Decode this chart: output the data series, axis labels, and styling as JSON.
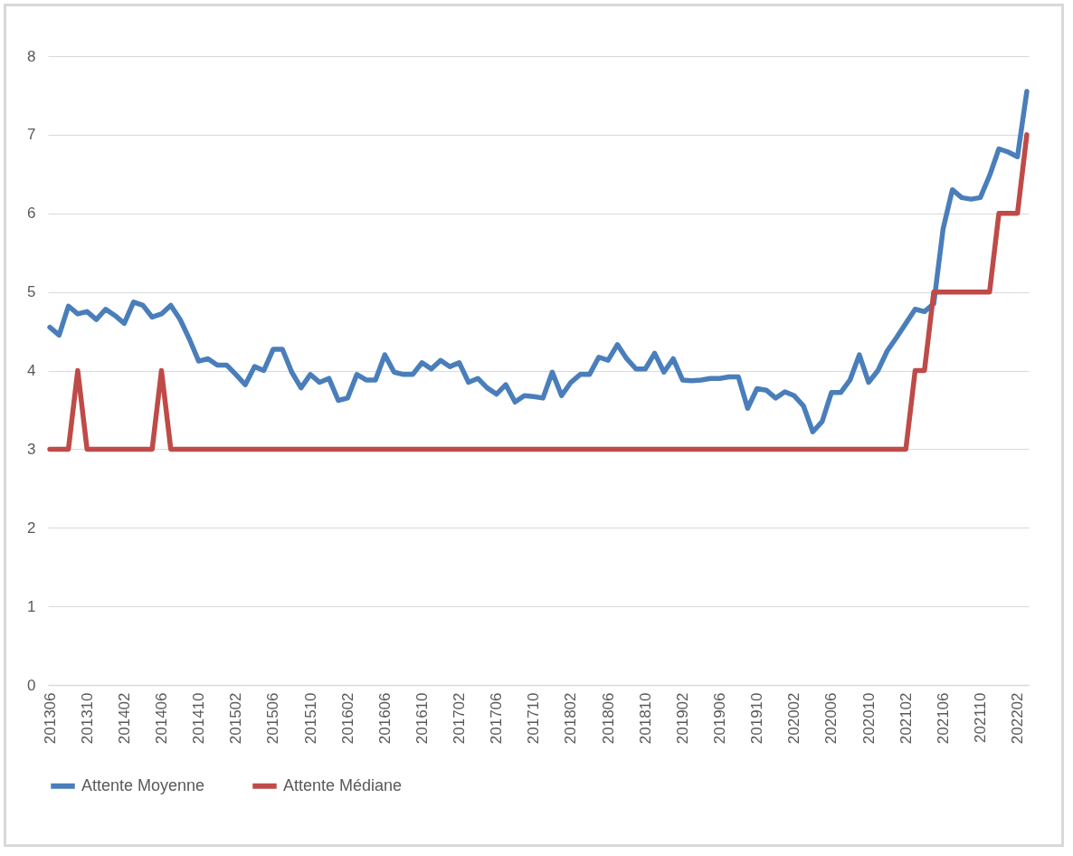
{
  "chart_data": {
    "type": "line",
    "categories": [
      "201306",
      null,
      null,
      null,
      "201310",
      null,
      null,
      null,
      "201402",
      null,
      null,
      null,
      "201406",
      null,
      null,
      null,
      "201410",
      null,
      null,
      null,
      "201502",
      null,
      null,
      null,
      "201506",
      null,
      null,
      null,
      "201510",
      null,
      null,
      null,
      "201602",
      null,
      null,
      null,
      "201606",
      null,
      null,
      null,
      "201610",
      null,
      null,
      null,
      "201702",
      null,
      null,
      null,
      "201706",
      null,
      null,
      null,
      "201710",
      null,
      null,
      null,
      "201802",
      null,
      null,
      null,
      "201806",
      null,
      null,
      null,
      "201810",
      null,
      null,
      null,
      "201902",
      null,
      null,
      null,
      "201906",
      null,
      null,
      null,
      "201910",
      null,
      null,
      null,
      "202002",
      null,
      null,
      null,
      "202006",
      null,
      null,
      null,
      "202010",
      null,
      null,
      null,
      "202102",
      null,
      null,
      null,
      "202106",
      null,
      null,
      null,
      "202110",
      null,
      null,
      null,
      "202202",
      null
    ],
    "series": [
      {
        "name": "Attente Moyenne",
        "color": "#4a7ebb",
        "values": [
          4.55,
          4.45,
          4.82,
          4.72,
          4.75,
          4.65,
          4.78,
          4.7,
          4.6,
          4.87,
          4.83,
          4.68,
          4.72,
          4.83,
          4.65,
          4.4,
          4.12,
          4.15,
          4.07,
          4.07,
          3.95,
          3.82,
          4.05,
          4.0,
          4.27,
          4.27,
          3.98,
          3.78,
          3.95,
          3.85,
          3.9,
          3.62,
          3.65,
          3.95,
          3.88,
          3.88,
          4.2,
          3.98,
          3.95,
          3.95,
          4.1,
          4.02,
          4.13,
          4.05,
          4.1,
          3.85,
          3.9,
          3.78,
          3.7,
          3.82,
          3.6,
          3.68,
          3.67,
          3.65,
          3.98,
          3.68,
          3.85,
          3.95,
          3.95,
          4.17,
          4.13,
          4.33,
          4.15,
          4.02,
          4.02,
          4.22,
          3.98,
          4.15,
          3.88,
          3.87,
          3.88,
          3.9,
          3.9,
          3.92,
          3.92,
          3.52,
          3.77,
          3.75,
          3.65,
          3.73,
          3.68,
          3.55,
          3.22,
          3.35,
          3.72,
          3.72,
          3.88,
          4.2,
          3.85,
          4.0,
          4.25,
          4.42,
          4.6,
          4.78,
          4.75,
          4.85,
          5.8,
          6.3,
          6.2,
          6.18,
          6.2,
          6.48,
          6.82,
          6.78,
          6.72,
          7.55
        ]
      },
      {
        "name": "Attente Médiane",
        "color": "#be4b48",
        "values": [
          3,
          3,
          3,
          4,
          3,
          3,
          3,
          3,
          3,
          3,
          3,
          3,
          4,
          3,
          3,
          3,
          3,
          3,
          3,
          3,
          3,
          3,
          3,
          3,
          3,
          3,
          3,
          3,
          3,
          3,
          3,
          3,
          3,
          3,
          3,
          3,
          3,
          3,
          3,
          3,
          3,
          3,
          3,
          3,
          3,
          3,
          3,
          3,
          3,
          3,
          3,
          3,
          3,
          3,
          3,
          3,
          3,
          3,
          3,
          3,
          3,
          3,
          3,
          3,
          3,
          3,
          3,
          3,
          3,
          3,
          3,
          3,
          3,
          3,
          3,
          3,
          3,
          3,
          3,
          3,
          3,
          3,
          3,
          3,
          3,
          3,
          3,
          3,
          3,
          3,
          3,
          3,
          3,
          4,
          4,
          5,
          5,
          5,
          5,
          5,
          5,
          5,
          6,
          6,
          6,
          7
        ]
      }
    ],
    "ylim": [
      0,
      8
    ],
    "yticks": [
      0,
      1,
      2,
      3,
      4,
      5,
      6,
      7,
      8
    ],
    "grid": "y",
    "legend": "bottom"
  }
}
